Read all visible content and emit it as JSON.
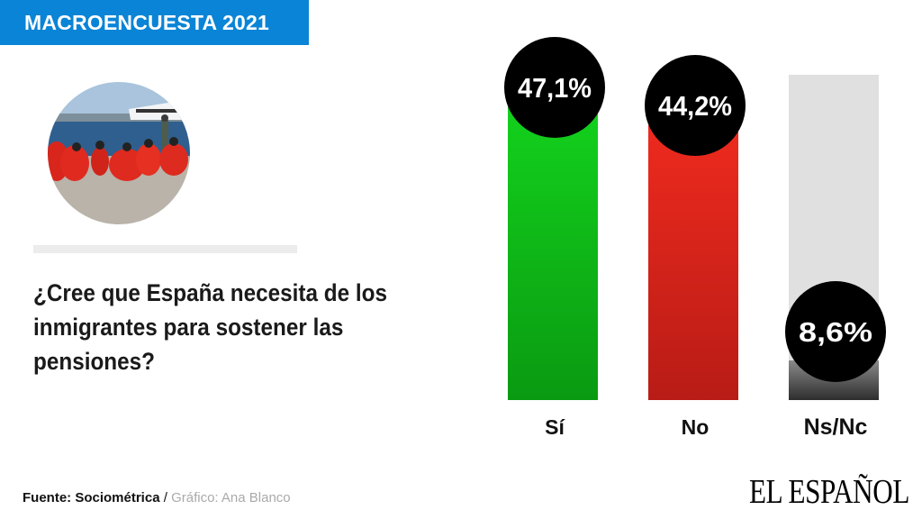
{
  "header": {
    "badge": "MACROENCUESTA 2021"
  },
  "question": "¿Cree que España necesita de los inmigrantes para  sostener las pensiones?",
  "photo": {
    "description": "people wrapped in red blankets sitting on a beach by a harbor"
  },
  "footer": {
    "source_label": "Fuente: Sociométrica",
    "separator": " / ",
    "credit": "Gráfico: Ana Blanco",
    "logo": "EL ESPAÑOL"
  },
  "colors": {
    "banner": "#0a84d6",
    "si": "#10c419",
    "no": "#e8231c",
    "nsnc": "#3a3a3a",
    "track": "#e0e0e0",
    "bubble": "#000000"
  },
  "chart_data": {
    "type": "bar",
    "title": "¿Cree que España necesita de los inmigrantes para  sostener las pensiones?",
    "categories": [
      "Sí",
      "No",
      "Ns/Nc"
    ],
    "values": [
      47.1,
      44.2,
      8.6
    ],
    "value_labels": [
      "47,1%",
      "44,2%",
      "8,6%"
    ],
    "unit": "%",
    "ylim": [
      0,
      50
    ],
    "grid": false,
    "legend": "none"
  }
}
